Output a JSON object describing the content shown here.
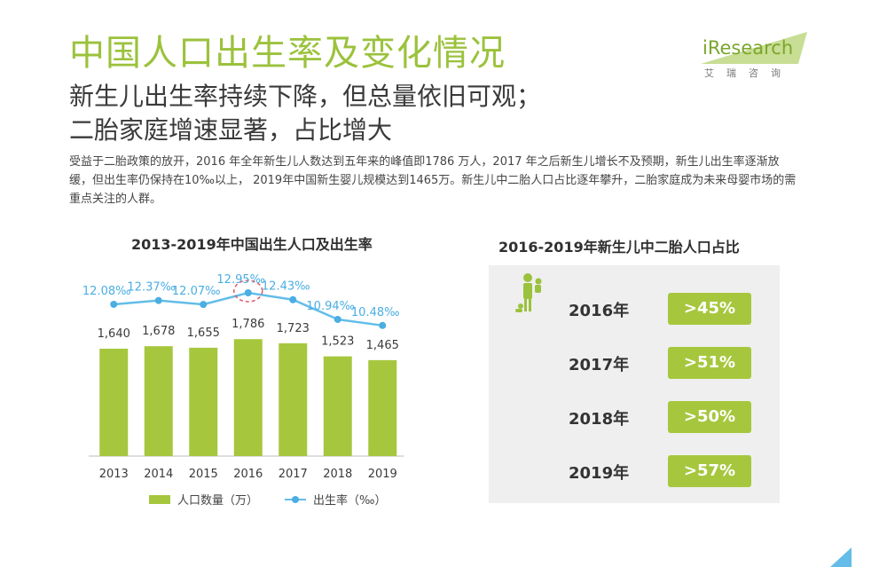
{
  "header": {
    "title": "中国人口出生率及变化情况",
    "subtitle_line1": "新生儿出生率持续下降，但总量依旧可观；",
    "subtitle_line2": "二胎家庭增速显著，占比增大",
    "intro": "受益于二胎政策的放开，2016 年全年新生儿人数达到五年来的峰值即1786 万人，2017 年之后新生儿增长不及预期，新生儿出生率逐渐放缓，但出生率仍保持在10‰以上， 2019年中国新生婴儿规模达到1465万。新生儿中二胎人口占比逐年攀升，二胎家庭成为未来母婴市场的需重点关注的人群。"
  },
  "logo": {
    "text": "iResearch",
    "cn": "艾瑞咨询"
  },
  "colors": {
    "accent": "#9bc23c",
    "bar": "#a6c73d",
    "line": "#63bde8",
    "highlight": "#e05a6a"
  },
  "chart_data": [
    {
      "type": "bar",
      "title": "2013-2019年中国出生人口及出生率",
      "categories": [
        "2013",
        "2014",
        "2015",
        "2016",
        "2017",
        "2018",
        "2019"
      ],
      "series": [
        {
          "name": "人口数量（万）",
          "type": "bar",
          "values": [
            1640,
            1678,
            1655,
            1786,
            1723,
            1523,
            1465
          ],
          "labels": [
            "1,640",
            "1,678",
            "1,655",
            "1,786",
            "1,723",
            "1,523",
            "1,465"
          ]
        },
        {
          "name": "出生率（‰）",
          "type": "line",
          "values": [
            12.08,
            12.37,
            12.07,
            12.95,
            12.43,
            10.94,
            10.48
          ],
          "labels": [
            "12.08‰",
            "12.37‰",
            "12.07‰",
            "12.95‰",
            "12.43‰",
            "10.94‰",
            "10.48‰"
          ]
        }
      ],
      "highlight_category": "2016",
      "legend": {
        "bar": "人口数量（万）",
        "line": "出生率（‰）"
      }
    },
    {
      "type": "table",
      "title": "2016-2019年新生儿中二胎人口占比",
      "rows": [
        {
          "year": "2016年",
          "share": ">45%"
        },
        {
          "year": "2017年",
          "share": ">51%"
        },
        {
          "year": "2018年",
          "share": ">50%"
        },
        {
          "year": "2019年",
          "share": ">57%"
        }
      ]
    }
  ],
  "icons": {
    "family": "family-icon"
  }
}
